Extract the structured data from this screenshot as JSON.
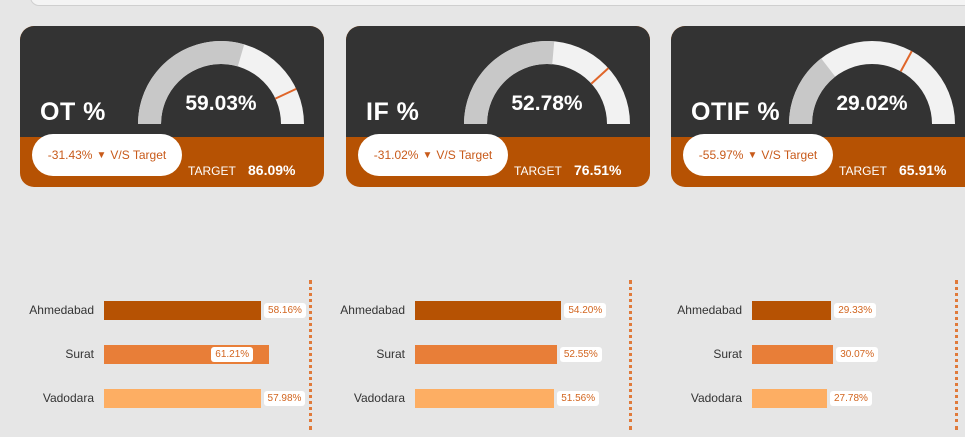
{
  "cards": [
    {
      "title": "OT %",
      "value": "59.03%",
      "delta": "-31.43%",
      "arrow": "▼",
      "vs_text": "V/S Target",
      "target_label": "TARGET",
      "target_value": "86.09%",
      "gauge_fraction": 0.5903,
      "target_fraction": 0.8609
    },
    {
      "title": "IF %",
      "value": "52.78%",
      "delta": "-31.02%",
      "arrow": "▼",
      "vs_text": "V/S Target",
      "target_label": "TARGET",
      "target_value": "76.51%",
      "gauge_fraction": 0.5278,
      "target_fraction": 0.7651
    },
    {
      "title": "OTIF %",
      "value": "29.02%",
      "delta": "-55.97%",
      "arrow": "▼",
      "vs_text": "V/S Target",
      "target_label": "TARGET",
      "target_value": "65.91%",
      "gauge_fraction": 0.2902,
      "target_fraction": 0.6591
    }
  ],
  "colors": {
    "card_dark": "#333333",
    "card_accent": "#b65203",
    "gauge_fill": "#c8c8c8",
    "gauge_track": "#f2f2f2",
    "target_marker": "#e0662a",
    "bar_ahmedabad": "#b65203",
    "bar_surat": "#e87e38",
    "bar_vadodara": "#fdae63"
  },
  "chart_data": [
    {
      "type": "bar",
      "categories": [
        "Ahmedabad",
        "Surat",
        "Vadodara"
      ],
      "values": [
        58.16,
        61.21,
        57.98
      ],
      "labels": [
        "58.16%",
        "61.21%",
        "57.98%"
      ],
      "label_inside": [
        false,
        true,
        false
      ]
    },
    {
      "type": "bar",
      "categories": [
        "Ahmedabad",
        "Surat",
        "Vadodara"
      ],
      "values": [
        54.2,
        52.55,
        51.56
      ],
      "labels": [
        "54.20%",
        "52.55%",
        "51.56%"
      ],
      "label_inside": [
        false,
        false,
        false
      ]
    },
    {
      "type": "bar",
      "categories": [
        "Ahmedabad",
        "Surat",
        "Vadodara"
      ],
      "values": [
        29.33,
        30.07,
        27.78
      ],
      "labels": [
        "29.33%",
        "30.07%",
        "27.78%"
      ],
      "label_inside": [
        false,
        false,
        false
      ]
    }
  ]
}
